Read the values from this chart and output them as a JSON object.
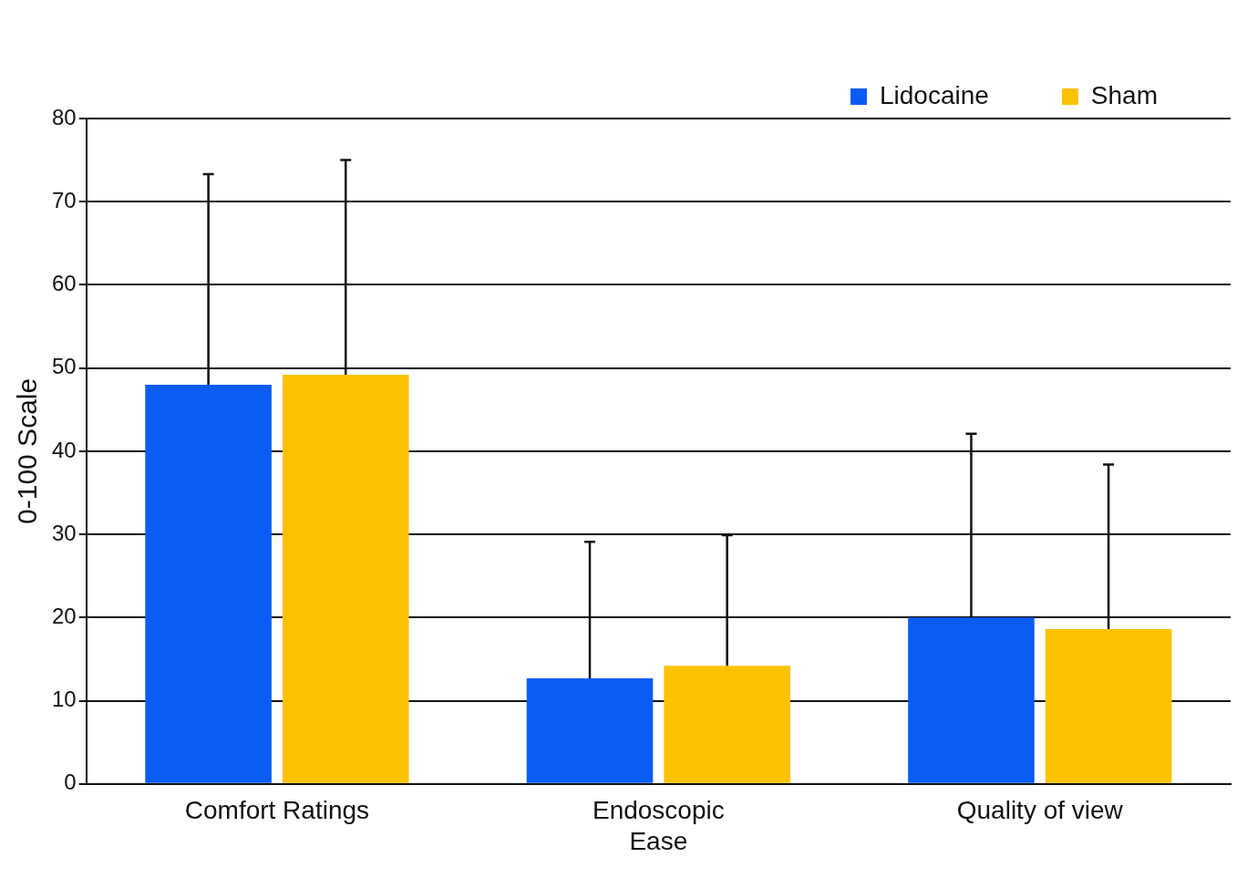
{
  "chart_data": {
    "type": "bar",
    "ylabel": "0-100 Scale",
    "categories": [
      "Comfort Ratings",
      "Endoscopic\nEase",
      "Quality of view"
    ],
    "series": [
      {
        "name": "Lidocaine",
        "color": "#0a5cf5",
        "values": [
          48.0,
          12.7,
          20.0
        ],
        "errors": [
          [
            48.0,
            73.3
          ],
          [
            12.7,
            29.1
          ],
          [
            20.0,
            42.1
          ]
        ]
      },
      {
        "name": "Sham",
        "color": "#fcc200",
        "values": [
          49.2,
          14.2,
          18.6
        ],
        "errors": [
          [
            49.2,
            75.0
          ],
          [
            14.2,
            29.9
          ],
          [
            18.6,
            38.4
          ]
        ]
      }
    ],
    "ylim": [
      0,
      80
    ],
    "yticks": [
      0,
      10,
      20,
      30,
      40,
      50,
      60,
      70,
      80
    ],
    "grid": "y",
    "legend": "top right"
  }
}
